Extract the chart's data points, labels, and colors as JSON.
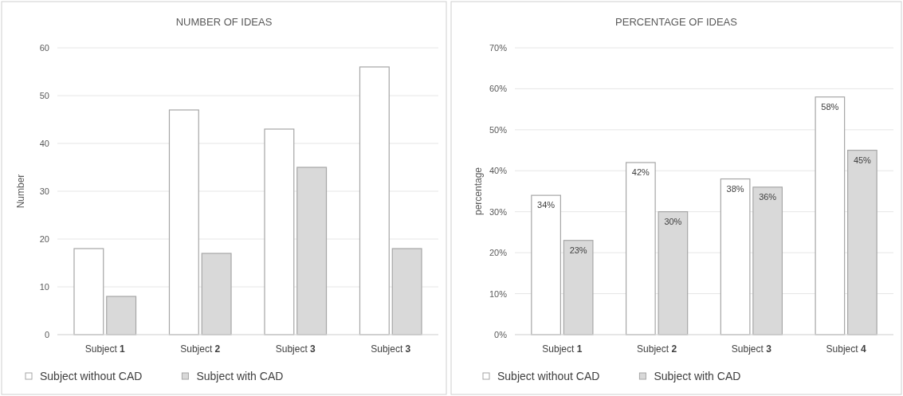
{
  "chart_data": [
    {
      "type": "bar",
      "title": "NUMBER OF IDEAS",
      "ylabel": "Number",
      "categories": [
        "Subject 1",
        "Subject 2",
        "Subject 3",
        "Subject 3"
      ],
      "series": [
        {
          "name": "Subject without CAD",
          "color": "#ffffff",
          "values": [
            18,
            47,
            43,
            56
          ]
        },
        {
          "name": "Subject with CAD",
          "color": "#d9d9d9",
          "values": [
            8,
            17,
            35,
            18
          ]
        }
      ],
      "ylim": [
        0,
        60
      ],
      "yticks": [
        0,
        10,
        20,
        30,
        40,
        50,
        60
      ],
      "grid": "y",
      "legend": "bottom"
    },
    {
      "type": "bar",
      "title": "PERCENTAGE OF IDEAS",
      "ylabel": "percentage",
      "categories": [
        "Subject 1",
        "Subject 2",
        "Subject 3",
        "Subject 4"
      ],
      "series": [
        {
          "name": "Subject without CAD",
          "color": "#ffffff",
          "values": [
            34,
            42,
            38,
            58
          ],
          "value_labels": [
            "34%",
            "42%",
            "38%",
            "58%"
          ]
        },
        {
          "name": "Subject with CAD",
          "color": "#d9d9d9",
          "values": [
            23,
            30,
            36,
            45
          ],
          "value_labels": [
            "23%",
            "30%",
            "36%",
            "45%"
          ]
        }
      ],
      "ylim": [
        0,
        70
      ],
      "yticks": [
        {
          "value": 0,
          "label": "0%"
        },
        {
          "value": 10,
          "label": "10%"
        },
        {
          "value": 20,
          "label": "20%"
        },
        {
          "value": 30,
          "label": "30%"
        },
        {
          "value": 40,
          "label": "40%"
        },
        {
          "value": 50,
          "label": "50%"
        },
        {
          "value": 60,
          "label": "60%"
        },
        {
          "value": 70,
          "label": "70%"
        }
      ],
      "grid": "y",
      "legend": "bottom"
    }
  ]
}
